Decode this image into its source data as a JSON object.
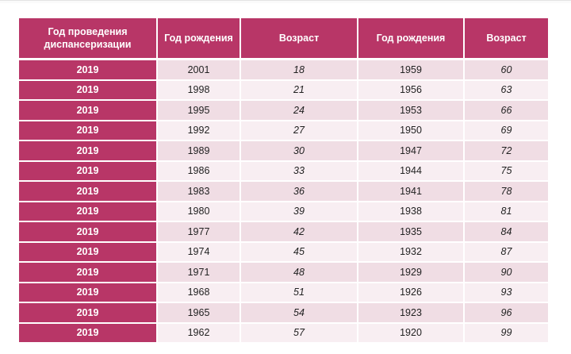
{
  "table": {
    "headers": [
      "Год проведения диспансеризации",
      "Год рождения",
      "Возраст",
      "Год рождения",
      "Возраст"
    ],
    "rows": [
      [
        "2019",
        "2001",
        "18",
        "1959",
        "60"
      ],
      [
        "2019",
        "1998",
        "21",
        "1956",
        "63"
      ],
      [
        "2019",
        "1995",
        "24",
        "1953",
        "66"
      ],
      [
        "2019",
        "1992",
        "27",
        "1950",
        "69"
      ],
      [
        "2019",
        "1989",
        "30",
        "1947",
        "72"
      ],
      [
        "2019",
        "1986",
        "33",
        "1944",
        "75"
      ],
      [
        "2019",
        "1983",
        "36",
        "1941",
        "78"
      ],
      [
        "2019",
        "1980",
        "39",
        "1938",
        "81"
      ],
      [
        "2019",
        "1977",
        "42",
        "1935",
        "84"
      ],
      [
        "2019",
        "1974",
        "45",
        "1932",
        "87"
      ],
      [
        "2019",
        "1971",
        "48",
        "1929",
        "90"
      ],
      [
        "2019",
        "1968",
        "51",
        "1926",
        "93"
      ],
      [
        "2019",
        "1965",
        "54",
        "1923",
        "96"
      ],
      [
        "2019",
        "1962",
        "57",
        "1920",
        "99"
      ]
    ]
  },
  "colors": {
    "header_bg": "#b83667",
    "row_odd": "#f0dde4",
    "row_even": "#f8eef2"
  }
}
